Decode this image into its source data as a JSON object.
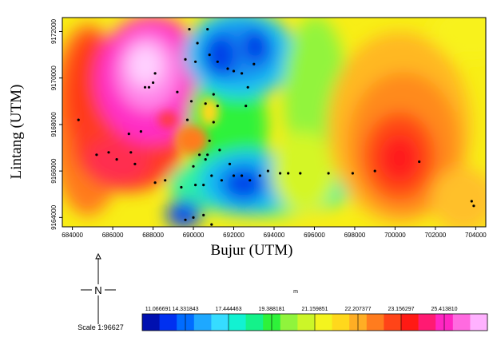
{
  "map": {
    "y_axis_label": "Lintang (UTM)",
    "x_axis_label": "Bujur (UTM)",
    "x_ticks": [
      "684000",
      "686000",
      "688000",
      "690000",
      "692000",
      "694000",
      "696000",
      "698000",
      "700000",
      "702000",
      "704000"
    ],
    "y_ticks": [
      "9164000",
      "9166000",
      "9168000",
      "9170000",
      "9172000"
    ],
    "x_range_m": [
      683500,
      704500
    ],
    "y_range_m": [
      9163600,
      9172600
    ],
    "stations": [
      [
        684300,
        9168200
      ],
      [
        685200,
        9166700
      ],
      [
        685800,
        9166800
      ],
      [
        686200,
        9166500
      ],
      [
        686900,
        9166800
      ],
      [
        686800,
        9167600
      ],
      [
        687100,
        9166300
      ],
      [
        687400,
        9167700
      ],
      [
        687600,
        9169600
      ],
      [
        687800,
        9169600
      ],
      [
        688000,
        9169800
      ],
      [
        688100,
        9170200
      ],
      [
        688100,
        9165500
      ],
      [
        688600,
        9165600
      ],
      [
        689400,
        9165300
      ],
      [
        689200,
        9169400
      ],
      [
        689600,
        9170800
      ],
      [
        689800,
        9172100
      ],
      [
        690100,
        9170700
      ],
      [
        689900,
        9169000
      ],
      [
        690300,
        9166700
      ],
      [
        690000,
        9166200
      ],
      [
        690100,
        9165400
      ],
      [
        690500,
        9165400
      ],
      [
        690600,
        9166500
      ],
      [
        690700,
        9166700
      ],
      [
        690800,
        9167300
      ],
      [
        691000,
        9168100
      ],
      [
        691200,
        9168800
      ],
      [
        691300,
        9166900
      ],
      [
        690800,
        9171000
      ],
      [
        691200,
        9170700
      ],
      [
        691700,
        9170400
      ],
      [
        692000,
        9170300
      ],
      [
        692400,
        9170200
      ],
      [
        692600,
        9168800
      ],
      [
        693000,
        9170600
      ],
      [
        690900,
        9165800
      ],
      [
        691400,
        9165600
      ],
      [
        691800,
        9166300
      ],
      [
        692000,
        9165800
      ],
      [
        692400,
        9165800
      ],
      [
        692800,
        9165600
      ],
      [
        693300,
        9165800
      ],
      [
        693700,
        9166000
      ],
      [
        694300,
        9165900
      ],
      [
        694700,
        9165900
      ],
      [
        695300,
        9165900
      ],
      [
        696700,
        9165900
      ],
      [
        697900,
        9165900
      ],
      [
        699000,
        9166000
      ],
      [
        701200,
        9166400
      ],
      [
        703800,
        9164700
      ],
      [
        703900,
        9164500
      ],
      [
        689600,
        9163900
      ],
      [
        690000,
        9164000
      ],
      [
        690500,
        9164100
      ],
      [
        690900,
        9163700
      ],
      [
        690200,
        9171500
      ],
      [
        690700,
        9172100
      ],
      [
        689700,
        9168200
      ],
      [
        691000,
        9169300
      ],
      [
        692700,
        9169600
      ],
      [
        690600,
        9168900
      ]
    ],
    "surface_colors": {
      "very_high": "#ffc6ff",
      "high": "#ff3cc8",
      "mid_high": "#ff1e3c",
      "mid": "#ffe600",
      "low_mid": "#2df23a",
      "low": "#19b0f0",
      "very_low": "#0033ee"
    }
  },
  "north_arrow": {
    "n_letter": "N",
    "scale_text": "Scale 1:96627"
  },
  "legend": {
    "unit": "m",
    "values": [
      "11.066691",
      "14.331843",
      "17.444463",
      "19.388181",
      "21.159851",
      "22.207377",
      "23.156297",
      "25.413810"
    ],
    "colors": [
      "#0010b0",
      "#0030f0",
      "#006cff",
      "#1ea8ff",
      "#36dcff",
      "#12f2d2",
      "#14f28a",
      "#2ef23a",
      "#90f43c",
      "#ccf628",
      "#f4f41e",
      "#ffd81c",
      "#ffae24",
      "#ff7c1e",
      "#ff4418",
      "#ff1a14",
      "#ff1a72",
      "#ff26c2",
      "#ff6ae0",
      "#ffb2ff"
    ]
  }
}
